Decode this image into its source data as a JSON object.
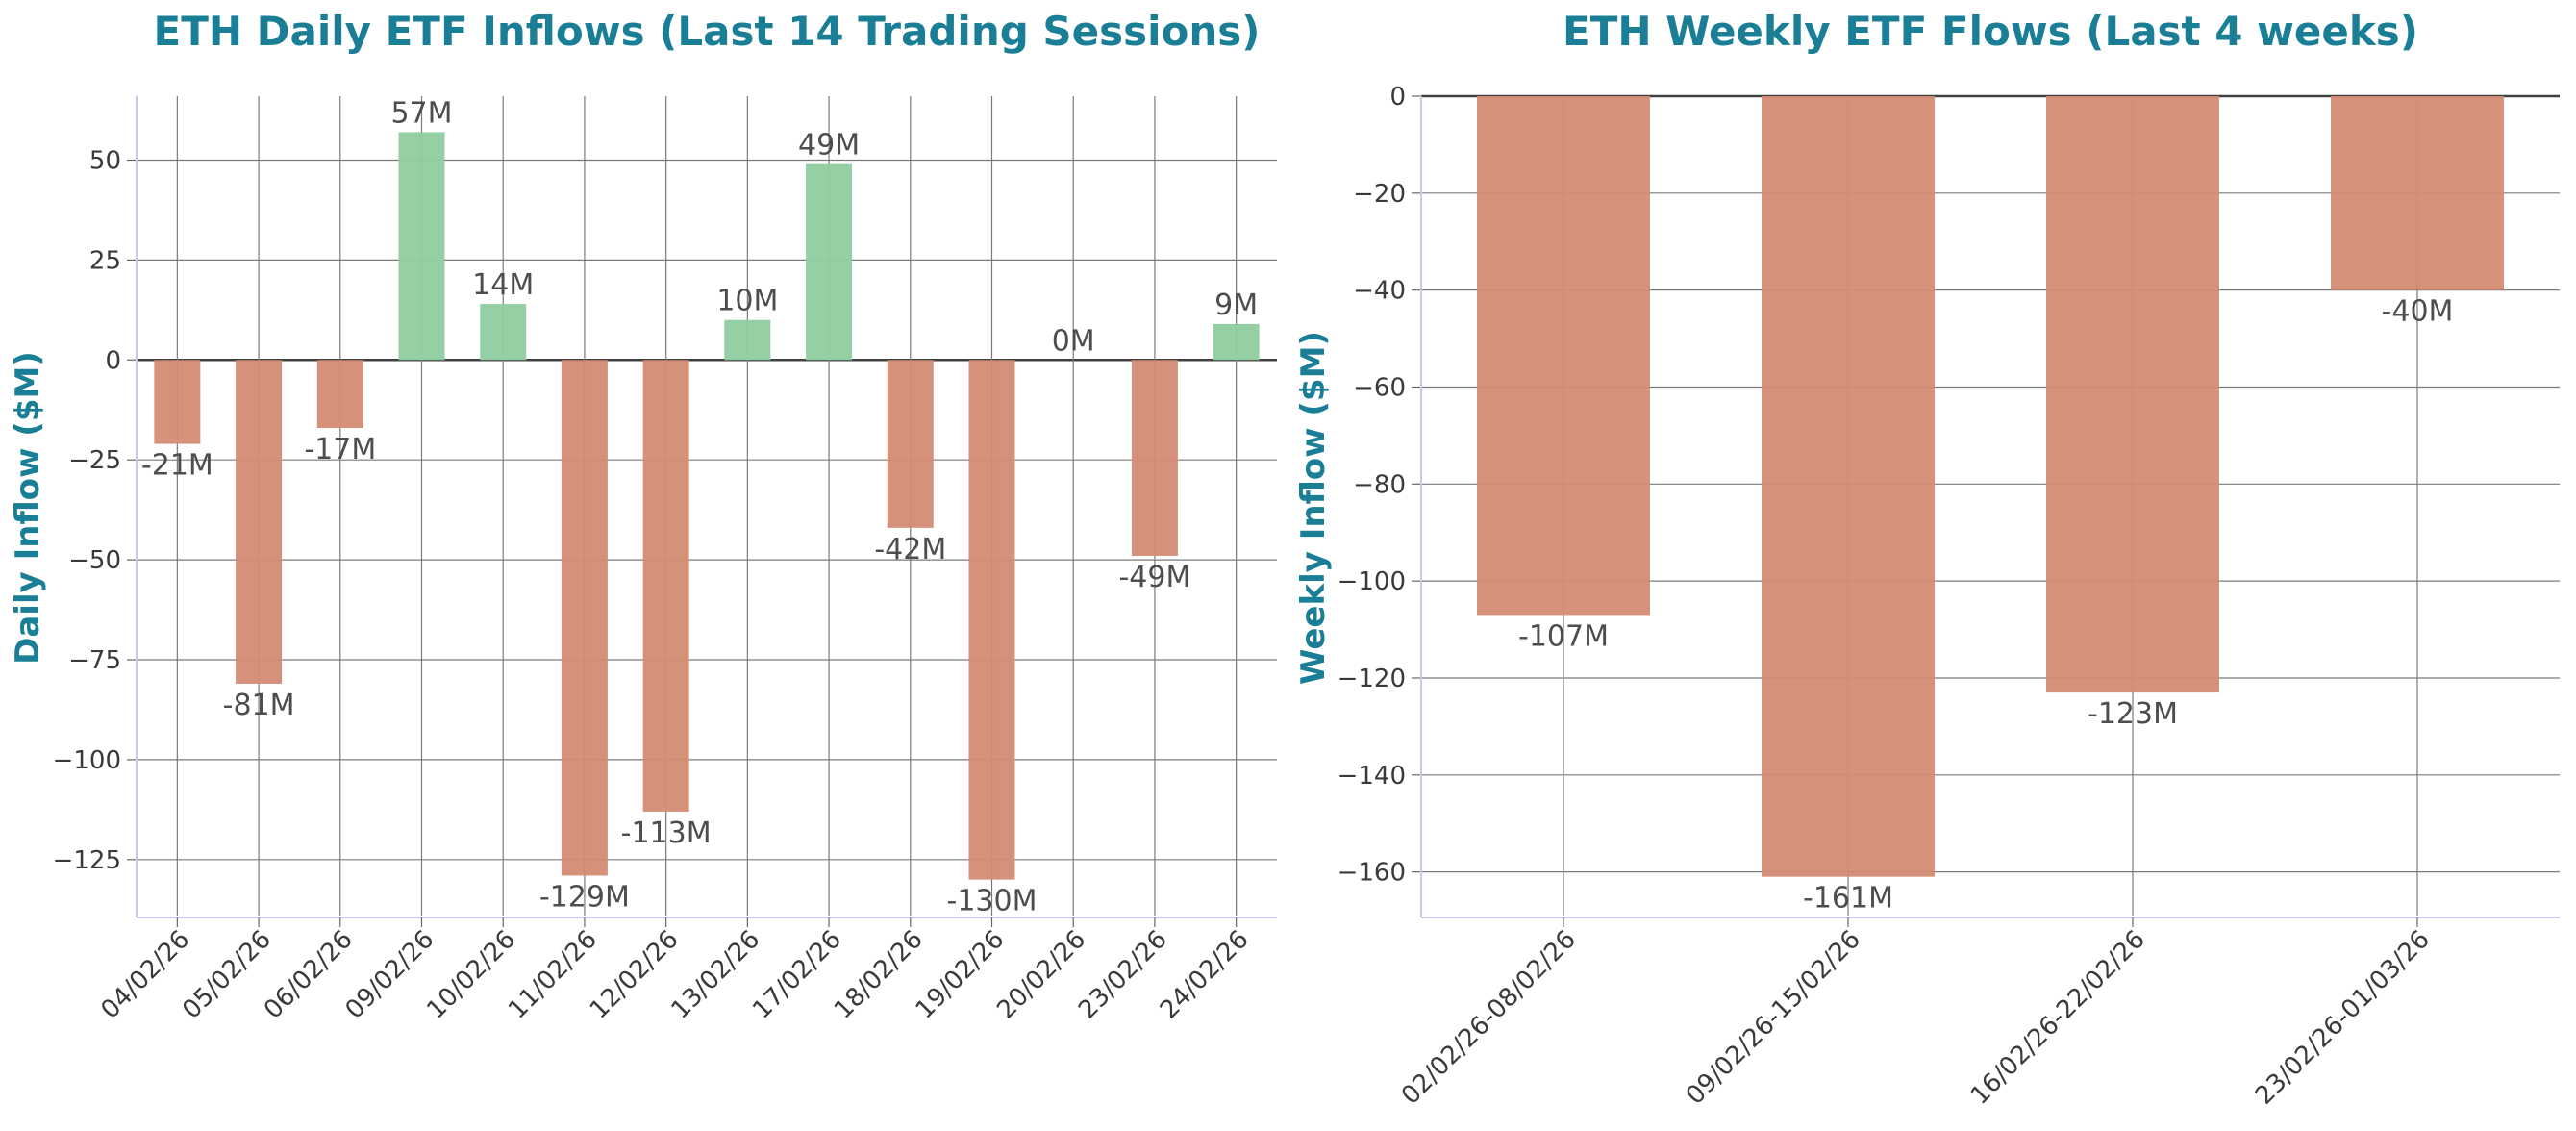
{
  "colors": {
    "title": "#1a7f96",
    "positive": "#8fcc9f",
    "negative": "#d48b74",
    "grid": "#7a7a7a",
    "zero_line": "#404040",
    "axis": "#c8c8e8",
    "label_text": "#4d4d4d"
  },
  "chart_data": [
    {
      "type": "bar",
      "title": "ETH Daily ETF Inflows (Last 14 Trading Sessions)",
      "xlabel": "",
      "ylabel": "Daily Inflow ($M)",
      "categories": [
        "04/02/26",
        "05/02/26",
        "06/02/26",
        "09/02/26",
        "10/02/26",
        "11/02/26",
        "12/02/26",
        "13/02/26",
        "17/02/26",
        "18/02/26",
        "19/02/26",
        "20/02/26",
        "23/02/26",
        "24/02/26"
      ],
      "values": [
        -21,
        -81,
        -17,
        57,
        14,
        -129,
        -113,
        10,
        49,
        -42,
        -130,
        0,
        -49,
        9
      ],
      "data_labels": [
        "-21M",
        "-81M",
        "-17M",
        "57M",
        "14M",
        "-129M",
        "-113M",
        "10M",
        "49M",
        "-42M",
        "-130M",
        "0M",
        "-49M",
        "9M"
      ],
      "ylim": [
        -139,
        66
      ],
      "yticks": [
        50,
        25,
        0,
        -25,
        -50,
        -75,
        -100,
        -125
      ],
      "ytick_labels": [
        "50",
        "25",
        "0",
        "−25",
        "−50",
        "−75",
        "−100",
        "−125"
      ],
      "grid": true,
      "legend": "none"
    },
    {
      "type": "bar",
      "title": "ETH Weekly ETF Flows (Last 4 weeks)",
      "xlabel": "",
      "ylabel": "Weekly Inflow ($M)",
      "categories": [
        "02/02/26-08/02/26",
        "09/02/26-15/02/26",
        "16/02/26-22/02/26",
        "23/02/26-01/03/26"
      ],
      "values": [
        -107,
        -161,
        -123,
        -40
      ],
      "data_labels": [
        "-107M",
        "-161M",
        "-123M",
        "-40M"
      ],
      "ylim": [
        -169,
        0
      ],
      "yticks": [
        0,
        -20,
        -40,
        -60,
        -80,
        -100,
        -120,
        -140,
        -160
      ],
      "ytick_labels": [
        "0",
        "−20",
        "−40",
        "−60",
        "−80",
        "−100",
        "−120",
        "−140",
        "−160"
      ],
      "grid": true,
      "legend": "none"
    }
  ]
}
